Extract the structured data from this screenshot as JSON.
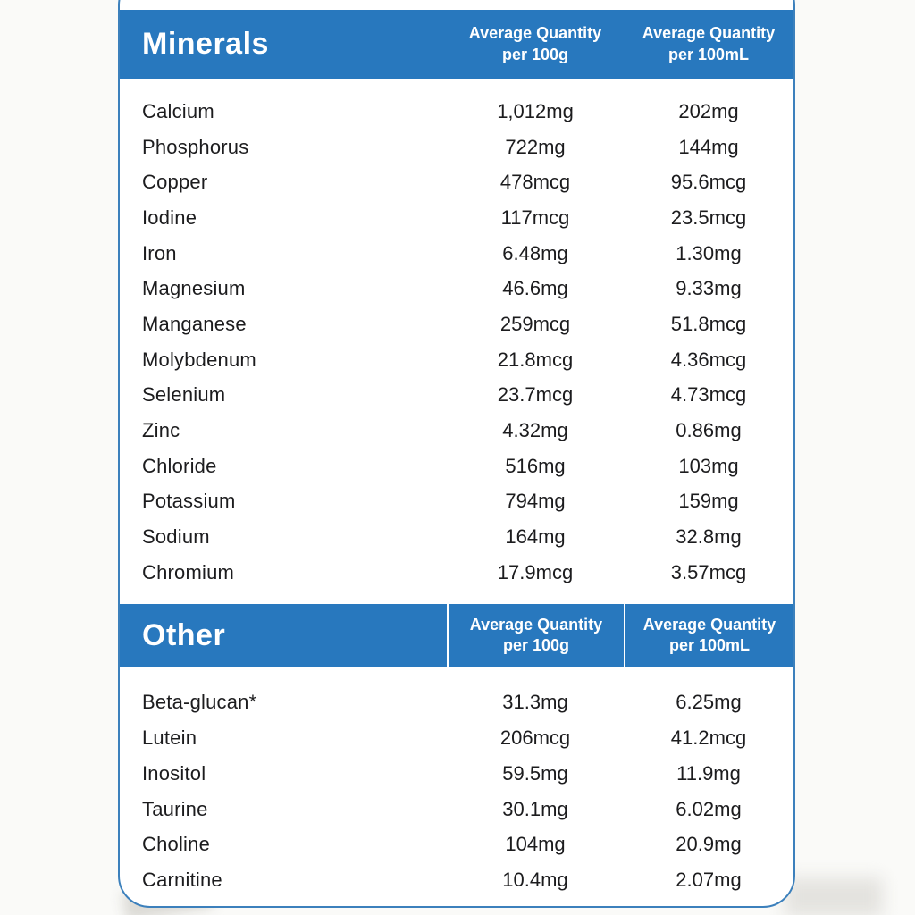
{
  "colors": {
    "accent_blue": "#2878BE",
    "card_border_blue": "#3C80BC",
    "header_text": "#FFFFFF",
    "row_text": "#1C1C1E",
    "page_background": "#FAFAF8"
  },
  "table": {
    "sections": [
      {
        "title": "Minerals",
        "col1_header": {
          "line1": "Average Quantity",
          "line2": "per 100g"
        },
        "col2_header": {
          "line1": "Average Quantity",
          "line2": "per 100mL"
        },
        "rows": [
          {
            "name": "Calcium",
            "per100g": "1,012mg",
            "per100ml": "202mg"
          },
          {
            "name": "Phosphorus",
            "per100g": "722mg",
            "per100ml": "144mg"
          },
          {
            "name": "Copper",
            "per100g": "478mcg",
            "per100ml": "95.6mcg"
          },
          {
            "name": "Iodine",
            "per100g": "117mcg",
            "per100ml": "23.5mcg"
          },
          {
            "name": "Iron",
            "per100g": "6.48mg",
            "per100ml": "1.30mg"
          },
          {
            "name": "Magnesium",
            "per100g": "46.6mg",
            "per100ml": "9.33mg"
          },
          {
            "name": "Manganese",
            "per100g": "259mcg",
            "per100ml": "51.8mcg"
          },
          {
            "name": "Molybdenum",
            "per100g": "21.8mcg",
            "per100ml": "4.36mcg"
          },
          {
            "name": "Selenium",
            "per100g": "23.7mcg",
            "per100ml": "4.73mcg"
          },
          {
            "name": "Zinc",
            "per100g": "4.32mg",
            "per100ml": "0.86mg"
          },
          {
            "name": "Chloride",
            "per100g": "516mg",
            "per100ml": "103mg"
          },
          {
            "name": "Potassium",
            "per100g": "794mg",
            "per100ml": "159mg"
          },
          {
            "name": "Sodium",
            "per100g": "164mg",
            "per100ml": "32.8mg"
          },
          {
            "name": "Chromium",
            "per100g": "17.9mcg",
            "per100ml": "3.57mcg"
          }
        ]
      },
      {
        "title": "Other",
        "col1_header": {
          "line1": "Average Quantity",
          "line2": "per 100g"
        },
        "col2_header": {
          "line1": "Average Quantity",
          "line2": "per 100mL"
        },
        "rows": [
          {
            "name": "Beta-glucan*",
            "per100g": "31.3mg",
            "per100ml": "6.25mg"
          },
          {
            "name": "Lutein",
            "per100g": "206mcg",
            "per100ml": "41.2mcg"
          },
          {
            "name": "Inositol",
            "per100g": "59.5mg",
            "per100ml": "11.9mg"
          },
          {
            "name": "Taurine",
            "per100g": "30.1mg",
            "per100ml": "6.02mg"
          },
          {
            "name": "Choline",
            "per100g": "104mg",
            "per100ml": "20.9mg"
          },
          {
            "name": "Carnitine",
            "per100g": "10.4mg",
            "per100ml": "2.07mg"
          }
        ]
      }
    ]
  }
}
